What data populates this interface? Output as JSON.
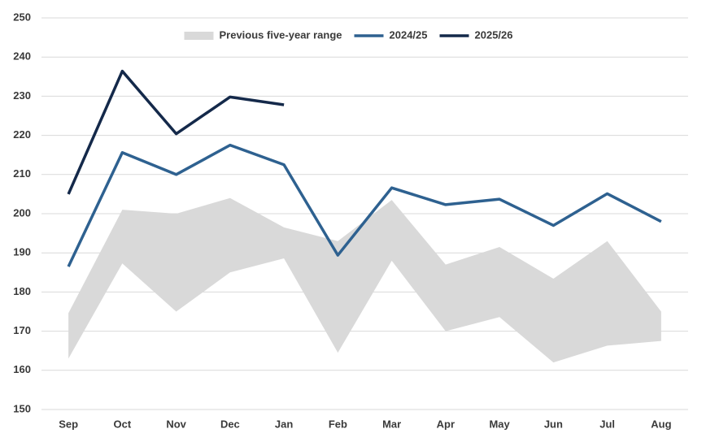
{
  "chart_data": {
    "type": "line",
    "categories": [
      "Sep",
      "Oct",
      "Nov",
      "Dec",
      "Jan",
      "Feb",
      "Mar",
      "Apr",
      "May",
      "Jun",
      "Jul",
      "Aug"
    ],
    "range": {
      "name": "Previous five-year range",
      "color": "#d9d9d9",
      "lower": [
        163,
        187.3,
        175,
        185,
        188.6,
        164.5,
        188,
        170,
        173.6,
        162,
        166.3,
        167.5
      ],
      "upper": [
        174.6,
        201,
        200,
        204,
        196.5,
        193,
        203.5,
        187,
        191.5,
        183.4,
        193,
        175
      ]
    },
    "series": [
      {
        "name": "2024/25",
        "color": "#2e6190",
        "values": [
          186.5,
          215.6,
          210,
          217.5,
          212.5,
          189.4,
          206.6,
          202.3,
          203.7,
          197,
          205.1,
          198
        ]
      },
      {
        "name": "2025/26",
        "color": "#14294a",
        "values": [
          205,
          236.4,
          220.4,
          229.8,
          227.8,
          null,
          null,
          null,
          null,
          null,
          null,
          null
        ]
      }
    ],
    "ylim": [
      150,
      250
    ],
    "yticks": [
      150,
      160,
      170,
      180,
      190,
      200,
      210,
      220,
      230,
      240,
      250
    ],
    "grid": true,
    "legend": "top"
  }
}
